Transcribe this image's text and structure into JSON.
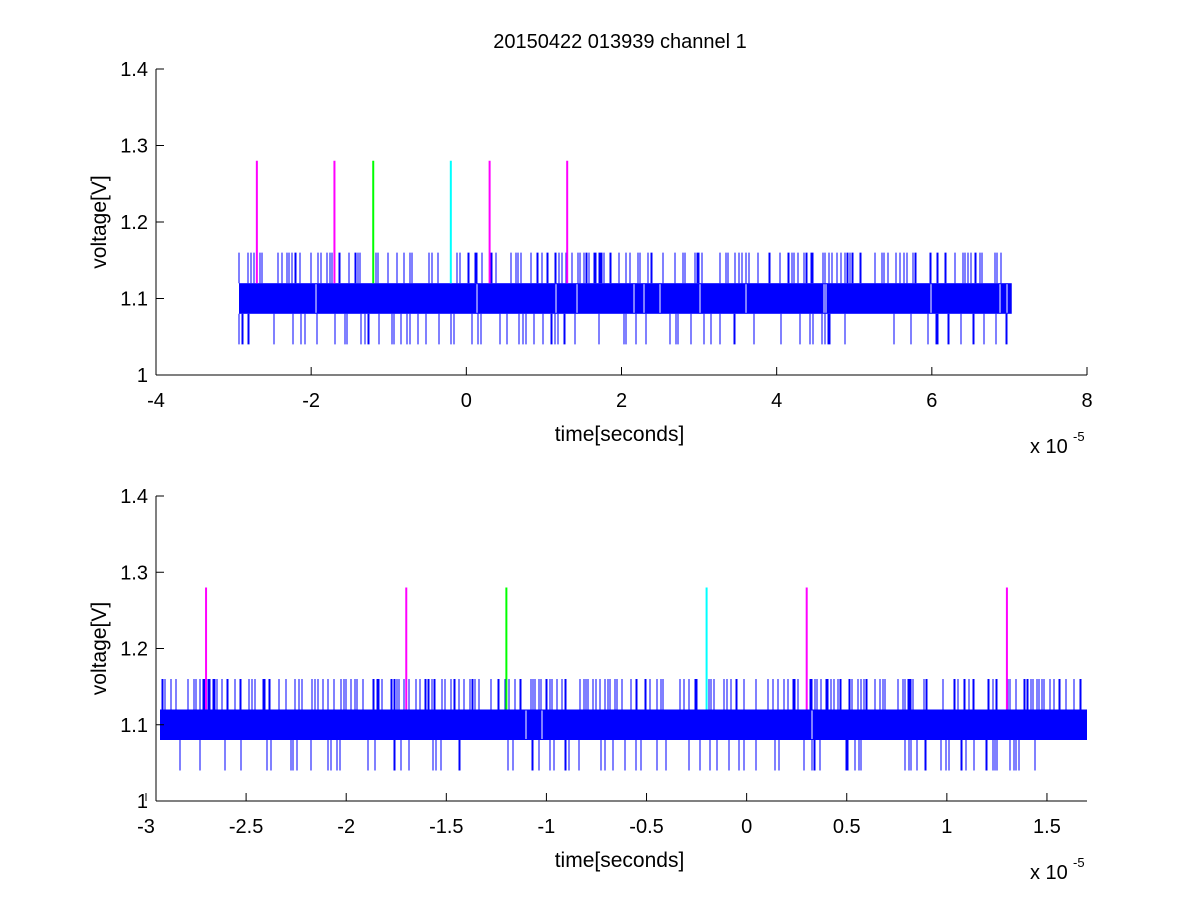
{
  "figure": {
    "title": "20150422 013939 channel 1"
  },
  "chart_data": [
    {
      "type": "line",
      "title": "20150422 013939 channel 1",
      "xlabel": "time[seconds]",
      "ylabel": "voltage[V]",
      "x_multiplier": "x 10",
      "x_multiplier_exp": "-5",
      "xlim": [
        -4,
        8
      ],
      "ylim": [
        1,
        1.4
      ],
      "xticks": [
        -4,
        -2,
        0,
        2,
        4,
        6,
        8
      ],
      "xtick_labels": [
        "-4",
        "-2",
        "0",
        "2",
        "4",
        "6",
        "8"
      ],
      "yticks": [
        1,
        1.1,
        1.2,
        1.3,
        1.4
      ],
      "ytick_labels": [
        "1",
        "1.1",
        "1.2",
        "1.3",
        "1.4"
      ],
      "grid": false,
      "series": [
        {
          "color": "#0000ff",
          "x_range": [
            -2.93,
            7.03
          ],
          "base_low": 1.08,
          "base_high": 1.12,
          "spike_high": 1.16,
          "spike_low": 1.04
        }
      ],
      "markers": [
        {
          "x": -2.7,
          "y_low": 1.12,
          "y_high": 1.28,
          "color": "#ff00ff"
        },
        {
          "x": -1.7,
          "y_low": 1.12,
          "y_high": 1.28,
          "color": "#ff00ff"
        },
        {
          "x": -1.2,
          "y_low": 1.12,
          "y_high": 1.28,
          "color": "#00ff00"
        },
        {
          "x": -0.2,
          "y_low": 1.12,
          "y_high": 1.28,
          "color": "#00ffff"
        },
        {
          "x": 0.3,
          "y_low": 1.12,
          "y_high": 1.28,
          "color": "#ff00ff"
        },
        {
          "x": 1.3,
          "y_low": 1.12,
          "y_high": 1.28,
          "color": "#ff00ff"
        }
      ]
    },
    {
      "type": "line",
      "title": "",
      "xlabel": "time[seconds]",
      "ylabel": "voltage[V]",
      "x_multiplier": "x 10",
      "x_multiplier_exp": "-5",
      "xlim": [
        -2.95,
        1.7
      ],
      "ylim": [
        1,
        1.4
      ],
      "xticks": [
        -3,
        -2.5,
        -2,
        -1.5,
        -1,
        -0.5,
        0,
        0.5,
        1,
        1.5
      ],
      "xtick_labels": [
        "-3",
        "-2.5",
        "-2",
        "-1.5",
        "-1",
        "-0.5",
        "0",
        "0.5",
        "1",
        "1.5"
      ],
      "yticks": [
        1,
        1.1,
        1.2,
        1.3,
        1.4
      ],
      "ytick_labels": [
        "1",
        "1.1",
        "1.2",
        "1.3",
        "1.4"
      ],
      "grid": false,
      "series": [
        {
          "color": "#0000ff",
          "x_range": [
            -2.93,
            1.7
          ],
          "base_low": 1.08,
          "base_high": 1.12,
          "spike_high": 1.16,
          "spike_low": 1.04
        }
      ],
      "markers": [
        {
          "x": -2.7,
          "y_low": 1.12,
          "y_high": 1.28,
          "color": "#ff00ff"
        },
        {
          "x": -1.7,
          "y_low": 1.12,
          "y_high": 1.28,
          "color": "#ff00ff"
        },
        {
          "x": -1.2,
          "y_low": 1.12,
          "y_high": 1.28,
          "color": "#00ff00"
        },
        {
          "x": -0.2,
          "y_low": 1.12,
          "y_high": 1.28,
          "color": "#00ffff"
        },
        {
          "x": 0.3,
          "y_low": 1.12,
          "y_high": 1.28,
          "color": "#ff00ff"
        },
        {
          "x": 1.3,
          "y_low": 1.12,
          "y_high": 1.28,
          "color": "#ff00ff"
        }
      ]
    }
  ]
}
